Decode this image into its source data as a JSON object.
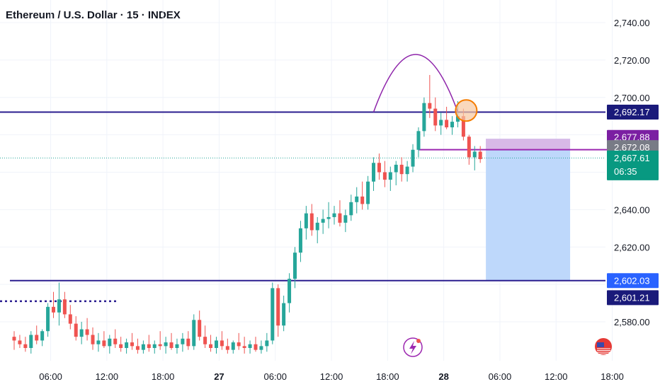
{
  "header": {
    "title": "Ethereum / U.S. Dollar · 15 · INDEX"
  },
  "colors": {
    "up": "#26a69a",
    "down": "#ef5350",
    "level_line": "#2a1d8f",
    "arc": "#8e24aa",
    "circle": "#f57c00",
    "target_box": "#bbd6fb",
    "stop_box": "#d9b7e6",
    "entry_line": "#9c27b0",
    "tag_purple": "#7b1fa2",
    "tag_gray": "#787b86",
    "tag_teal": "#089981",
    "tag_blue": "#2962ff",
    "tag_navy": "#1a1a7a"
  },
  "chart_data": {
    "type": "candlestick",
    "ylim": [
      2563,
      2747
    ],
    "y_ticks": [
      2580,
      2600,
      2620,
      2640,
      2660,
      2680,
      2700,
      2720,
      2740
    ],
    "y_tick_labels": [
      "2,580.00",
      "",
      "2,620.00",
      "2,640.00",
      "",
      "",
      "2,700.00",
      "2,720.00",
      "2,740.00"
    ],
    "x_range": [
      0,
      111
    ],
    "x_ticks": [
      {
        "x": 6.5,
        "label": "06:00",
        "bold": false
      },
      {
        "x": 16.5,
        "label": "12:00",
        "bold": false
      },
      {
        "x": 26.5,
        "label": "18:00",
        "bold": false
      },
      {
        "x": 36.5,
        "label": "27",
        "bold": true
      },
      {
        "x": 46.5,
        "label": "06:00",
        "bold": false
      },
      {
        "x": 56.5,
        "label": "12:00",
        "bold": false
      },
      {
        "x": 66.5,
        "label": "18:00",
        "bold": false
      },
      {
        "x": 76.5,
        "label": "28",
        "bold": true
      },
      {
        "x": 86.5,
        "label": "06:00",
        "bold": false
      },
      {
        "x": 96.5,
        "label": "12:00",
        "bold": false
      },
      {
        "x": 106.5,
        "label": "18:00",
        "bold": false
      }
    ],
    "candles": [
      [
        2572,
        2575,
        2565,
        2570
      ],
      [
        2570,
        2573,
        2566,
        2568
      ],
      [
        2568,
        2572,
        2564,
        2566
      ],
      [
        2566,
        2575,
        2563,
        2573
      ],
      [
        2573,
        2578,
        2568,
        2570
      ],
      [
        2570,
        2576,
        2567,
        2575
      ],
      [
        2575,
        2590,
        2572,
        2588
      ],
      [
        2588,
        2596,
        2582,
        2585
      ],
      [
        2585,
        2601,
        2578,
        2592
      ],
      [
        2592,
        2596,
        2582,
        2584
      ],
      [
        2584,
        2589,
        2576,
        2579
      ],
      [
        2579,
        2583,
        2570,
        2572
      ],
      [
        2572,
        2580,
        2568,
        2576
      ],
      [
        2576,
        2582,
        2570,
        2573
      ],
      [
        2573,
        2577,
        2565,
        2568
      ],
      [
        2568,
        2574,
        2564,
        2570
      ],
      [
        2570,
        2575,
        2566,
        2567
      ],
      [
        2567,
        2573,
        2563,
        2571
      ],
      [
        2571,
        2576,
        2566,
        2568
      ],
      [
        2568,
        2572,
        2564,
        2566
      ],
      [
        2566,
        2571,
        2563,
        2569
      ],
      [
        2569,
        2574,
        2565,
        2567
      ],
      [
        2567,
        2571,
        2563,
        2565
      ],
      [
        2565,
        2570,
        2563,
        2568
      ],
      [
        2568,
        2573,
        2564,
        2566
      ],
      [
        2566,
        2570,
        2563,
        2568
      ],
      [
        2568,
        2575,
        2565,
        2567
      ],
      [
        2567,
        2572,
        2563,
        2569
      ],
      [
        2569,
        2574,
        2565,
        2566
      ],
      [
        2566,
        2571,
        2563,
        2568
      ],
      [
        2568,
        2574,
        2564,
        2571
      ],
      [
        2571,
        2575,
        2565,
        2567
      ],
      [
        2567,
        2584,
        2565,
        2581
      ],
      [
        2581,
        2586,
        2570,
        2572
      ],
      [
        2572,
        2578,
        2566,
        2568
      ],
      [
        2568,
        2573,
        2564,
        2566
      ],
      [
        2566,
        2572,
        2563,
        2570
      ],
      [
        2570,
        2575,
        2565,
        2567
      ],
      [
        2567,
        2571,
        2563,
        2565
      ],
      [
        2565,
        2570,
        2563,
        2569
      ],
      [
        2569,
        2574,
        2565,
        2567
      ],
      [
        2567,
        2572,
        2563,
        2566
      ],
      [
        2566,
        2570,
        2563,
        2568
      ],
      [
        2568,
        2572,
        2564,
        2565
      ],
      [
        2565,
        2570,
        2563,
        2567
      ],
      [
        2567,
        2574,
        2564,
        2570
      ],
      [
        2570,
        2601,
        2568,
        2598
      ],
      [
        2598,
        2600,
        2572,
        2578
      ],
      [
        2578,
        2594,
        2575,
        2590
      ],
      [
        2590,
        2606,
        2585,
        2603
      ],
      [
        2603,
        2620,
        2598,
        2617
      ],
      [
        2617,
        2634,
        2612,
        2630
      ],
      [
        2630,
        2642,
        2624,
        2638
      ],
      [
        2638,
        2643,
        2626,
        2629
      ],
      [
        2629,
        2636,
        2622,
        2633
      ],
      [
        2633,
        2640,
        2627,
        2635
      ],
      [
        2635,
        2644,
        2630,
        2636
      ],
      [
        2636,
        2642,
        2632,
        2638
      ],
      [
        2638,
        2645,
        2631,
        2633
      ],
      [
        2633,
        2640,
        2628,
        2637
      ],
      [
        2637,
        2648,
        2634,
        2644
      ],
      [
        2644,
        2652,
        2638,
        2647
      ],
      [
        2647,
        2655,
        2640,
        2643
      ],
      [
        2643,
        2658,
        2640,
        2655
      ],
      [
        2655,
        2668,
        2650,
        2665
      ],
      [
        2665,
        2670,
        2656,
        2660
      ],
      [
        2660,
        2666,
        2652,
        2656
      ],
      [
        2656,
        2663,
        2650,
        2660
      ],
      [
        2660,
        2666,
        2653,
        2664
      ],
      [
        2664,
        2668,
        2655,
        2659
      ],
      [
        2659,
        2666,
        2655,
        2663
      ],
      [
        2663,
        2675,
        2660,
        2672
      ],
      [
        2672,
        2684,
        2668,
        2682
      ],
      [
        2682,
        2700,
        2679,
        2697
      ],
      [
        2697,
        2712,
        2689,
        2694
      ],
      [
        2694,
        2700,
        2682,
        2685
      ],
      [
        2685,
        2692,
        2680,
        2688
      ],
      [
        2688,
        2695,
        2683,
        2684
      ],
      [
        2684,
        2690,
        2680,
        2687
      ],
      [
        2687,
        2698,
        2684,
        2690
      ],
      [
        2690,
        2694,
        2677,
        2679
      ],
      [
        2679,
        2680,
        2664,
        2668
      ],
      [
        2668,
        2674,
        2661,
        2671
      ],
      [
        2671,
        2674,
        2665,
        2667
      ]
    ],
    "candle_times": [],
    "levels": [
      {
        "name": "resistance",
        "value": 2692.17
      },
      {
        "name": "support",
        "value": 2602.03
      }
    ],
    "target_zone": {
      "x_start": 84,
      "x_end": 99,
      "top": 2677.88,
      "bottom": 2602.03
    },
    "stop_zone": {
      "x_start": 84,
      "x_end": 99,
      "top": 2677.88,
      "bottom": 2672.08
    },
    "entry_line": {
      "x_start": 72,
      "x_end": 108,
      "value": 2672.08
    },
    "dotted_level": {
      "x_start": 0,
      "x_end": 16,
      "value": 2591
    },
    "arc": {
      "x_start": 64,
      "x_end": 79,
      "base": 2692.17,
      "peak": 2723
    },
    "circle": {
      "x": 80.5,
      "value": 2693
    }
  },
  "price_tags": [
    {
      "id": "resistance",
      "value": 2692.17,
      "label": "2,692.17",
      "color_key": "tag_navy"
    },
    {
      "id": "stop-top",
      "value": 2677.88,
      "label": "2,677.88",
      "color_key": "tag_purple"
    },
    {
      "id": "entry",
      "value": 2672.08,
      "label": "2,672.08",
      "color_key": "tag_gray"
    },
    {
      "id": "last-price",
      "value": 2667.61,
      "label": "2,667.61",
      "sub": "06:35",
      "color_key": "tag_teal"
    },
    {
      "id": "support-blue",
      "value": 2602.03,
      "label": "2,602.03",
      "color_key": "tag_blue"
    },
    {
      "id": "support-navy",
      "value": 2601.21,
      "label": "2,601.21",
      "color_key": "tag_navy"
    }
  ]
}
